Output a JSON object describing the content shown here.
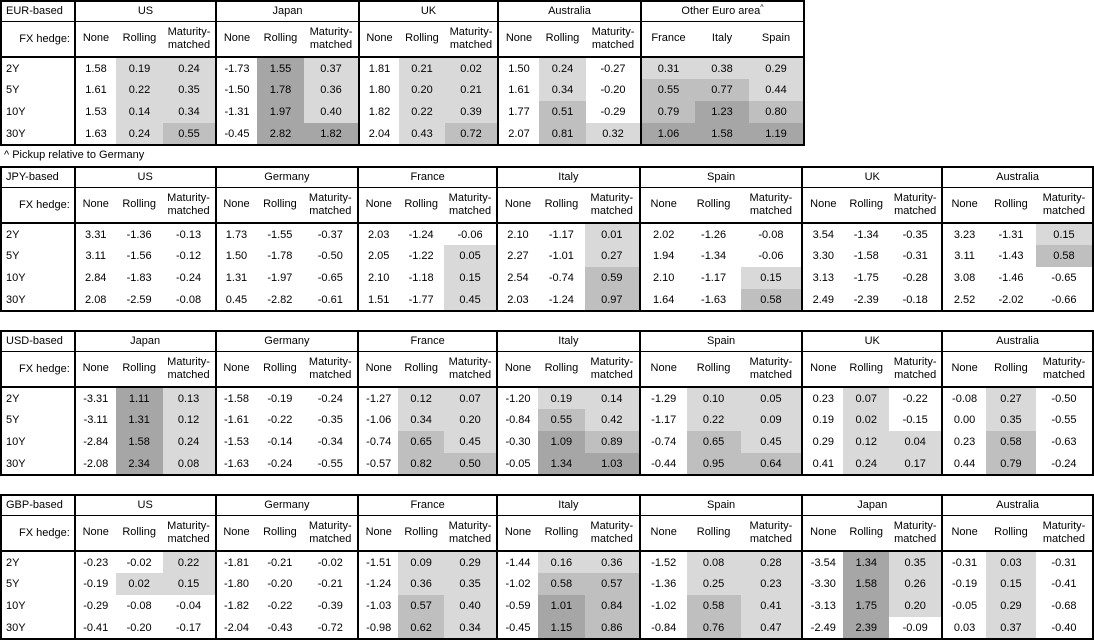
{
  "footnote": "^ Pickup relative to Germany",
  "fx_hedge_label": "FX hedge:",
  "hedge_cols": [
    "None",
    "Rolling",
    "Maturity-matched"
  ],
  "tenors": [
    "2Y",
    "5Y",
    "10Y",
    "30Y"
  ],
  "colors": {
    "background": "#ffffff",
    "text": "#000000",
    "border": "#000000",
    "cell_shade_light": "#d9d9d9",
    "cell_shade_medium": "#bfbfbf",
    "cell_shade_dark": "#a6a6a6"
  },
  "shading_rule": "Hedged (Rolling / Maturity-matched) and Other-Euro-area cells: <0 white, 0 to <0.5 light, 0.5 to <1.0 medium, >=1.0 dark; None column always white",
  "sections": [
    {
      "id": "eur-based",
      "label": "EUR-based",
      "groups": [
        {
          "name": "US",
          "rows": [
            [
              "1.58",
              "0.19",
              "0.24"
            ],
            [
              "1.61",
              "0.22",
              "0.35"
            ],
            [
              "1.53",
              "0.14",
              "0.34"
            ],
            [
              "1.63",
              "0.24",
              "0.55"
            ]
          ]
        },
        {
          "name": "Japan",
          "rows": [
            [
              "-1.73",
              "1.55",
              "0.37"
            ],
            [
              "-1.50",
              "1.78",
              "0.36"
            ],
            [
              "-1.31",
              "1.97",
              "0.40"
            ],
            [
              "-0.45",
              "2.82",
              "1.82"
            ]
          ]
        },
        {
          "name": "UK",
          "rows": [
            [
              "1.81",
              "0.21",
              "0.02"
            ],
            [
              "1.80",
              "0.20",
              "0.21"
            ],
            [
              "1.82",
              "0.22",
              "0.39"
            ],
            [
              "2.04",
              "0.43",
              "0.72"
            ]
          ]
        },
        {
          "name": "Australia",
          "rows": [
            [
              "1.50",
              "0.24",
              "-0.27"
            ],
            [
              "1.61",
              "0.34",
              "-0.20"
            ],
            [
              "1.77",
              "0.51",
              "-0.29"
            ],
            [
              "2.07",
              "0.81",
              "0.32"
            ]
          ]
        },
        {
          "name": "Other Euro area",
          "sup": "^",
          "cols": [
            "France",
            "Italy",
            "Spain"
          ],
          "rows": [
            [
              "0.31",
              "0.38",
              "0.29"
            ],
            [
              "0.55",
              "0.77",
              "0.44"
            ],
            [
              "0.79",
              "1.23",
              "0.80"
            ],
            [
              "1.06",
              "1.58",
              "1.19"
            ]
          ]
        }
      ]
    },
    {
      "id": "jpy-based",
      "label": "JPY-based",
      "groups": [
        {
          "name": "US",
          "rows": [
            [
              "3.31",
              "-1.36",
              "-0.13"
            ],
            [
              "3.11",
              "-1.56",
              "-0.12"
            ],
            [
              "2.84",
              "-1.83",
              "-0.24"
            ],
            [
              "2.08",
              "-2.59",
              "-0.08"
            ]
          ]
        },
        {
          "name": "Germany",
          "rows": [
            [
              "1.73",
              "-1.55",
              "-0.37"
            ],
            [
              "1.50",
              "-1.78",
              "-0.50"
            ],
            [
              "1.31",
              "-1.97",
              "-0.65"
            ],
            [
              "0.45",
              "-2.82",
              "-0.61"
            ]
          ]
        },
        {
          "name": "France",
          "rows": [
            [
              "2.03",
              "-1.24",
              "-0.06"
            ],
            [
              "2.05",
              "-1.22",
              "0.05"
            ],
            [
              "2.10",
              "-1.18",
              "0.15"
            ],
            [
              "1.51",
              "-1.77",
              "0.45"
            ]
          ]
        },
        {
          "name": "Italy",
          "rows": [
            [
              "2.10",
              "-1.17",
              "0.01"
            ],
            [
              "2.27",
              "-1.01",
              "0.27"
            ],
            [
              "2.54",
              "-0.74",
              "0.59"
            ],
            [
              "2.03",
              "-1.24",
              "0.97"
            ]
          ]
        },
        {
          "name": "Spain",
          "rows": [
            [
              "2.02",
              "-1.26",
              "-0.08"
            ],
            [
              "1.94",
              "-1.34",
              "-0.06"
            ],
            [
              "2.10",
              "-1.17",
              "0.15"
            ],
            [
              "1.64",
              "-1.63",
              "0.58"
            ]
          ]
        },
        {
          "name": "UK",
          "rows": [
            [
              "3.54",
              "-1.34",
              "-0.35"
            ],
            [
              "3.30",
              "-1.58",
              "-0.31"
            ],
            [
              "3.13",
              "-1.75",
              "-0.28"
            ],
            [
              "2.49",
              "-2.39",
              "-0.18"
            ]
          ]
        },
        {
          "name": "Australia",
          "rows": [
            [
              "3.23",
              "-1.31",
              "0.15"
            ],
            [
              "3.11",
              "-1.43",
              "0.58"
            ],
            [
              "3.08",
              "-1.46",
              "-0.65"
            ],
            [
              "2.52",
              "-2.02",
              "-0.66"
            ]
          ]
        }
      ]
    },
    {
      "id": "usd-based",
      "label": "USD-based",
      "groups": [
        {
          "name": "Japan",
          "rows": [
            [
              "-3.31",
              "1.11",
              "0.13"
            ],
            [
              "-3.11",
              "1.31",
              "0.12"
            ],
            [
              "-2.84",
              "1.58",
              "0.24"
            ],
            [
              "-2.08",
              "2.34",
              "0.08"
            ]
          ]
        },
        {
          "name": "Germany",
          "rows": [
            [
              "-1.58",
              "-0.19",
              "-0.24"
            ],
            [
              "-1.61",
              "-0.22",
              "-0.35"
            ],
            [
              "-1.53",
              "-0.14",
              "-0.34"
            ],
            [
              "-1.63",
              "-0.24",
              "-0.55"
            ]
          ]
        },
        {
          "name": "France",
          "rows": [
            [
              "-1.27",
              "0.12",
              "0.07"
            ],
            [
              "-1.06",
              "0.34",
              "0.20"
            ],
            [
              "-0.74",
              "0.65",
              "0.45"
            ],
            [
              "-0.57",
              "0.82",
              "0.50"
            ]
          ]
        },
        {
          "name": "Italy",
          "rows": [
            [
              "-1.20",
              "0.19",
              "0.14"
            ],
            [
              "-0.84",
              "0.55",
              "0.42"
            ],
            [
              "-0.30",
              "1.09",
              "0.89"
            ],
            [
              "-0.05",
              "1.34",
              "1.03"
            ]
          ]
        },
        {
          "name": "Spain",
          "rows": [
            [
              "-1.29",
              "0.10",
              "0.05"
            ],
            [
              "-1.17",
              "0.22",
              "0.09"
            ],
            [
              "-0.74",
              "0.65",
              "0.45"
            ],
            [
              "-0.44",
              "0.95",
              "0.64"
            ]
          ]
        },
        {
          "name": "UK",
          "rows": [
            [
              "0.23",
              "0.07",
              "-0.22"
            ],
            [
              "0.19",
              "0.02",
              "-0.15"
            ],
            [
              "0.29",
              "0.12",
              "0.04"
            ],
            [
              "0.41",
              "0.24",
              "0.17"
            ]
          ]
        },
        {
          "name": "Australia",
          "rows": [
            [
              "-0.08",
              "0.27",
              "-0.50"
            ],
            [
              "0.00",
              "0.35",
              "-0.55"
            ],
            [
              "0.23",
              "0.58",
              "-0.63"
            ],
            [
              "0.44",
              "0.79",
              "-0.24"
            ]
          ]
        }
      ]
    },
    {
      "id": "gbp-based",
      "label": "GBP-based",
      "groups": [
        {
          "name": "US",
          "rows": [
            [
              "-0.23",
              "-0.02",
              "0.22"
            ],
            [
              "-0.19",
              "0.02",
              "0.15"
            ],
            [
              "-0.29",
              "-0.08",
              "-0.04"
            ],
            [
              "-0.41",
              "-0.20",
              "-0.17"
            ]
          ]
        },
        {
          "name": "Germany",
          "rows": [
            [
              "-1.81",
              "-0.21",
              "-0.02"
            ],
            [
              "-1.80",
              "-0.20",
              "-0.21"
            ],
            [
              "-1.82",
              "-0.22",
              "-0.39"
            ],
            [
              "-2.04",
              "-0.43",
              "-0.72"
            ]
          ]
        },
        {
          "name": "France",
          "rows": [
            [
              "-1.51",
              "0.09",
              "0.29"
            ],
            [
              "-1.24",
              "0.36",
              "0.35"
            ],
            [
              "-1.03",
              "0.57",
              "0.40"
            ],
            [
              "-0.98",
              "0.62",
              "0.34"
            ]
          ]
        },
        {
          "name": "Italy",
          "rows": [
            [
              "-1.44",
              "0.16",
              "0.36"
            ],
            [
              "-1.02",
              "0.58",
              "0.57"
            ],
            [
              "-0.59",
              "1.01",
              "0.84"
            ],
            [
              "-0.45",
              "1.15",
              "0.86"
            ]
          ]
        },
        {
          "name": "Spain",
          "rows": [
            [
              "-1.52",
              "0.08",
              "0.28"
            ],
            [
              "-1.36",
              "0.25",
              "0.23"
            ],
            [
              "-1.02",
              "0.58",
              "0.41"
            ],
            [
              "-0.84",
              "0.76",
              "0.47"
            ]
          ]
        },
        {
          "name": "Japan",
          "rows": [
            [
              "-3.54",
              "1.34",
              "0.35"
            ],
            [
              "-3.30",
              "1.58",
              "0.26"
            ],
            [
              "-3.13",
              "1.75",
              "0.20"
            ],
            [
              "-2.49",
              "2.39",
              "-0.09"
            ]
          ]
        },
        {
          "name": "Australia",
          "rows": [
            [
              "-0.31",
              "0.03",
              "-0.31"
            ],
            [
              "-0.19",
              "0.15",
              "-0.41"
            ],
            [
              "-0.05",
              "0.29",
              "-0.68"
            ],
            [
              "0.03",
              "0.37",
              "-0.40"
            ]
          ]
        }
      ]
    }
  ]
}
